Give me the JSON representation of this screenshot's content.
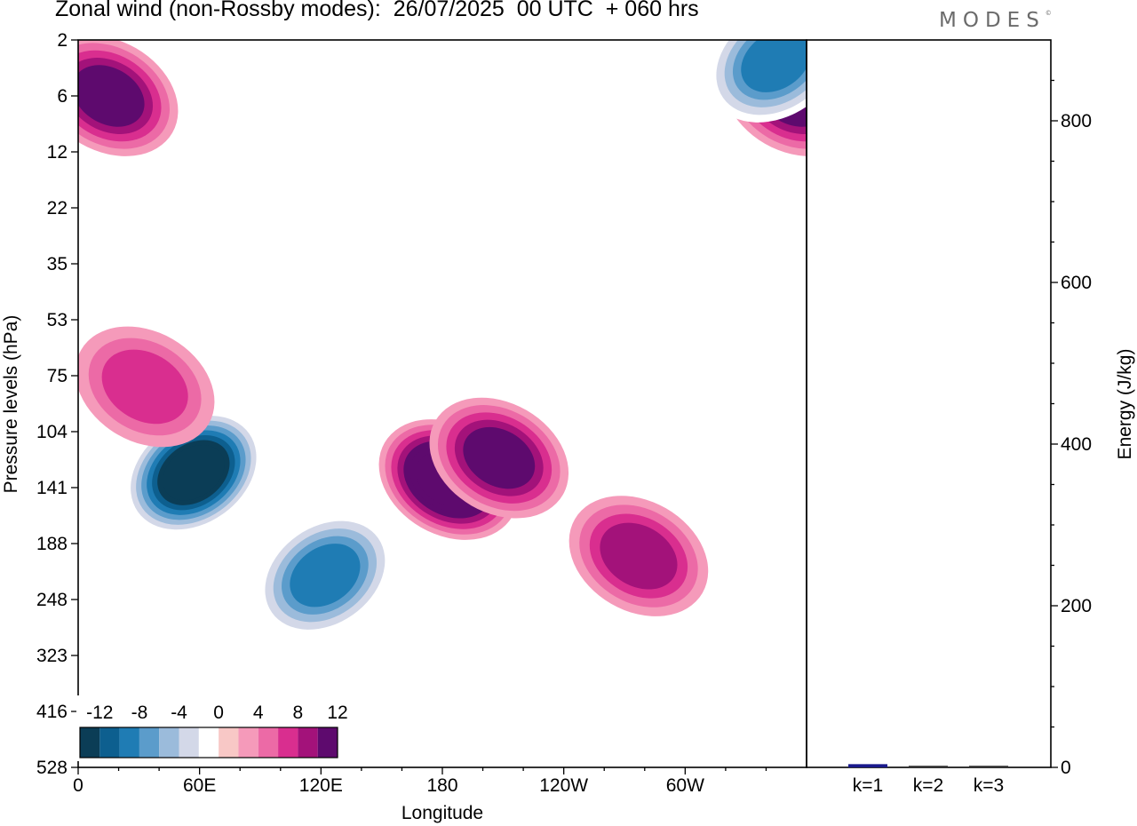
{
  "header": {
    "title": "Zonal wind (non-Rossby modes):  26/07/2025  00 UTC  + 060 hrs",
    "logo_text": "MODES",
    "logo_mark": "©"
  },
  "chart_data": [
    {
      "type": "heatmap",
      "title": "Zonal wind (non-Rossby modes):  26/07/2025  00 UTC  + 060 hrs",
      "xlabel": "Longitude",
      "ylabel": "Pressure levels (hPa)",
      "x_ticks": [
        "0",
        "60E",
        "120E",
        "180",
        "120W",
        "60W"
      ],
      "y_ticks": [
        "2",
        "6",
        "12",
        "22",
        "35",
        "53",
        "75",
        "104",
        "141",
        "188",
        "248",
        "323",
        "416",
        "528"
      ],
      "colorbar": {
        "labels": [
          "-12",
          "-8",
          "-4",
          "0",
          "4",
          "8",
          "12"
        ],
        "levels": [
          -14,
          -12,
          -10,
          -8,
          -6,
          -4,
          -2,
          2,
          4,
          6,
          8,
          10,
          12,
          14
        ],
        "colors": [
          "#0b3d56",
          "#0d5f8f",
          "#1f7cb4",
          "#5b9ccb",
          "#9bbbdb",
          "#d3d8e8",
          "#ffffff",
          "#f8c8c6",
          "#f59aba",
          "#ec6aa6",
          "#d92e8f",
          "#a3127a",
          "#5e0a6e"
        ]
      },
      "features": [
        {
          "lon": 57,
          "p": 130,
          "value": -16
        },
        {
          "lon": 122,
          "p": 220,
          "value": -10
        },
        {
          "lon": 183,
          "p": 135,
          "value": 13
        },
        {
          "lon": 208,
          "p": 120,
          "value": 10
        },
        {
          "lon": 15,
          "p": 6,
          "value": 9
        },
        {
          "lon": 353,
          "p": 6,
          "value": 10
        },
        {
          "lon": 345,
          "p": 3,
          "value": -9
        },
        {
          "lon": 277,
          "p": 200,
          "value": 7
        },
        {
          "lon": 33,
          "p": 80,
          "value": 6
        }
      ]
    },
    {
      "type": "bar",
      "categories": [
        "k=1",
        "k=2",
        "k=3"
      ],
      "values": [
        4,
        2,
        2
      ],
      "ylabel": "Energy (J/kg)",
      "ylim": [
        0,
        900
      ],
      "y_ticks": [
        0,
        200,
        400,
        600,
        800
      ],
      "bar_color": "#1a1a8c"
    }
  ]
}
